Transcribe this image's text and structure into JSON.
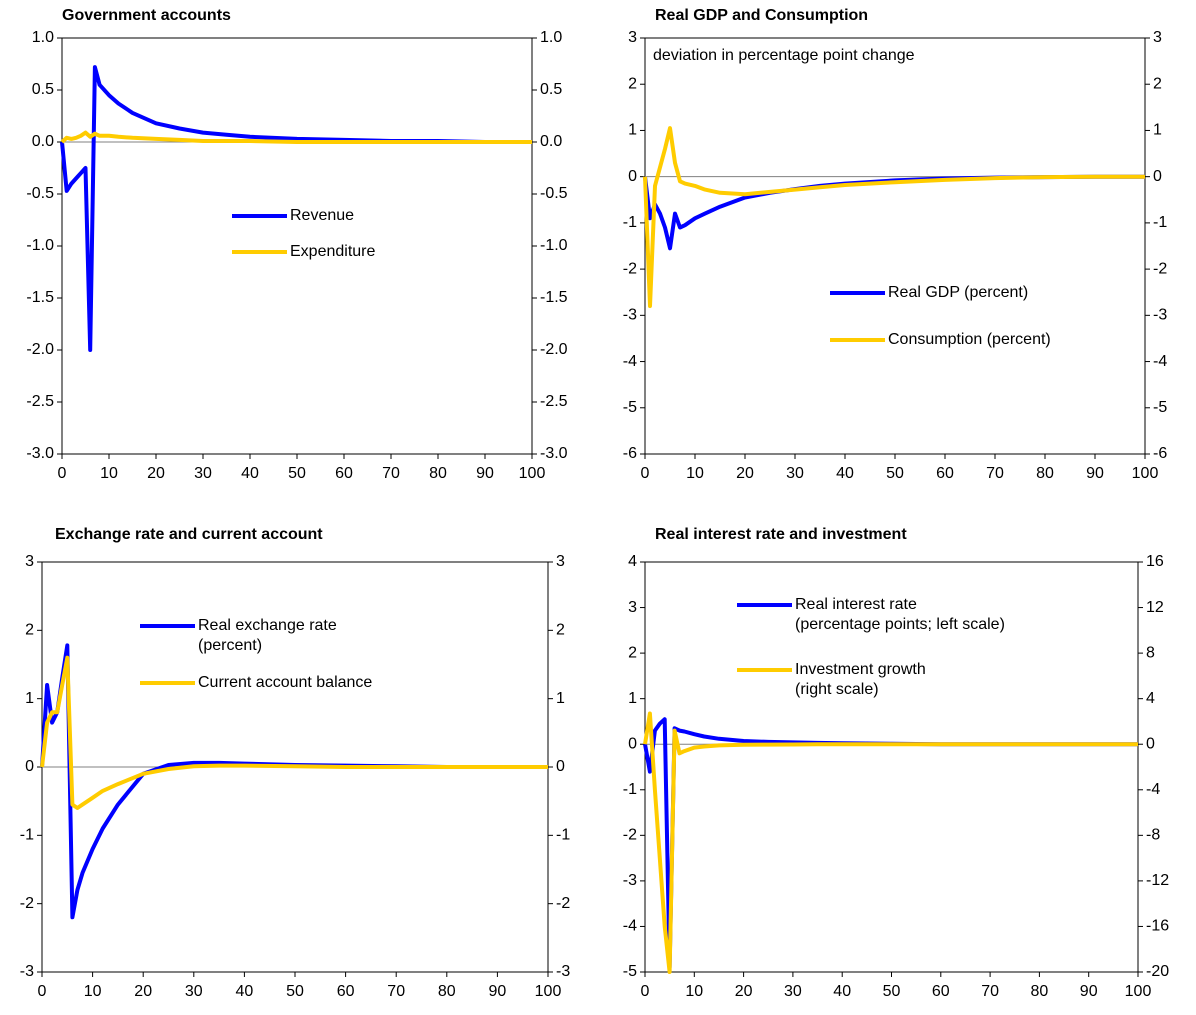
{
  "chart_data": [
    {
      "type": "line",
      "title": "Government accounts",
      "x": [
        0,
        1,
        2,
        3,
        4,
        5,
        6,
        7,
        8,
        10,
        12,
        15,
        20,
        25,
        30,
        35,
        40,
        50,
        60,
        70,
        80,
        90,
        100
      ],
      "series": [
        {
          "name": "Revenue",
          "color": "#0000ff",
          "values": [
            0,
            -0.47,
            -0.4,
            -0.35,
            -0.3,
            -0.25,
            -2.0,
            0.72,
            0.55,
            0.45,
            0.37,
            0.28,
            0.18,
            0.13,
            0.09,
            0.07,
            0.05,
            0.03,
            0.02,
            0.01,
            0.01,
            0,
            0
          ]
        },
        {
          "name": "Expenditure",
          "color": "#ffcc00",
          "values": [
            0,
            0.04,
            0.03,
            0.04,
            0.06,
            0.09,
            0.05,
            0.08,
            0.06,
            0.06,
            0.05,
            0.04,
            0.03,
            0.02,
            0.01,
            0.01,
            0.01,
            0,
            0,
            0,
            0,
            0,
            0
          ]
        }
      ],
      "xlim": [
        0,
        100
      ],
      "xticks": [
        0,
        10,
        20,
        30,
        40,
        50,
        60,
        70,
        80,
        90,
        100
      ],
      "ylim": [
        -3.0,
        1.0
      ],
      "yticks": [
        {
          "value": -3,
          "label": "-3.0"
        },
        {
          "value": -2.5,
          "label": "-2.5"
        },
        {
          "value": -2,
          "label": "-2.0"
        },
        {
          "value": -1.5,
          "label": "-1.5"
        },
        {
          "value": -1,
          "label": "-1.0"
        },
        {
          "value": -0.5,
          "label": "-0.5"
        },
        {
          "value": 0,
          "label": "0.0"
        },
        {
          "value": 0.5,
          "label": "0.5"
        },
        {
          "value": 1,
          "label": "1.0"
        }
      ],
      "y2lim": [
        -3.0,
        1.0
      ],
      "y2ticks": [
        {
          "value": -3,
          "label": "-3.0"
        },
        {
          "value": -2.5,
          "label": "-2.5"
        },
        {
          "value": -2,
          "label": "-2.0"
        },
        {
          "value": -1.5,
          "label": "-1.5"
        },
        {
          "value": -1,
          "label": "-1.0"
        },
        {
          "value": -0.5,
          "label": "-0.5"
        },
        {
          "value": 0,
          "label": "0.0"
        },
        {
          "value": 0.5,
          "label": "0.5"
        },
        {
          "value": 1,
          "label": "1.0"
        }
      ]
    },
    {
      "type": "line",
      "title": "Real GDP and Consumption",
      "annotation": "deviation in percentage point change",
      "x": [
        0,
        1,
        2,
        3,
        4,
        5,
        6,
        7,
        8,
        10,
        12,
        15,
        20,
        25,
        30,
        35,
        40,
        50,
        60,
        70,
        80,
        90,
        100
      ],
      "series": [
        {
          "name": "Real GDP (percent)",
          "color": "#0000ff",
          "values": [
            0,
            -0.9,
            -0.6,
            -0.8,
            -1.1,
            -1.55,
            -0.8,
            -1.1,
            -1.05,
            -0.9,
            -0.8,
            -0.65,
            -0.45,
            -0.35,
            -0.27,
            -0.2,
            -0.15,
            -0.08,
            -0.04,
            -0.02,
            -0.01,
            0,
            0
          ]
        },
        {
          "name": "Consumption (percent)",
          "color": "#ffcc00",
          "values": [
            0,
            -2.8,
            -0.2,
            0.2,
            0.6,
            1.05,
            0.3,
            -0.1,
            -0.15,
            -0.2,
            -0.28,
            -0.35,
            -0.38,
            -0.33,
            -0.28,
            -0.23,
            -0.18,
            -0.12,
            -0.07,
            -0.03,
            -0.01,
            0,
            0
          ]
        }
      ],
      "xlim": [
        0,
        100
      ],
      "xticks": [
        0,
        10,
        20,
        30,
        40,
        50,
        60,
        70,
        80,
        90,
        100
      ],
      "ylim": [
        -6,
        3
      ],
      "yticks": [
        -6,
        -5,
        -4,
        -3,
        -2,
        -1,
        0,
        1,
        2,
        3
      ],
      "y2lim": [
        -6,
        3
      ],
      "y2ticks": [
        -6,
        -5,
        -4,
        -3,
        -2,
        -1,
        0,
        1,
        2,
        3
      ]
    },
    {
      "type": "line",
      "title": "Exchange rate and current account",
      "x": [
        0,
        1,
        2,
        3,
        4,
        5,
        6,
        7,
        8,
        10,
        12,
        15,
        20,
        25,
        30,
        35,
        40,
        50,
        60,
        70,
        80,
        90,
        100
      ],
      "series": [
        {
          "name": "Real exchange rate\n(percent)",
          "color": "#0000ff",
          "values": [
            0,
            1.2,
            0.65,
            0.8,
            1.3,
            1.78,
            -2.2,
            -1.8,
            -1.55,
            -1.2,
            -0.9,
            -0.55,
            -0.1,
            0.03,
            0.06,
            0.06,
            0.05,
            0.03,
            0.02,
            0.01,
            0,
            0,
            0
          ]
        },
        {
          "name": "Current account balance",
          "color": "#ffcc00",
          "values": [
            0,
            0.65,
            0.8,
            0.8,
            1.2,
            1.6,
            -0.55,
            -0.6,
            -0.55,
            -0.45,
            -0.35,
            -0.25,
            -0.1,
            -0.03,
            0.01,
            0.02,
            0.02,
            0.01,
            0,
            0,
            0,
            0,
            0
          ]
        }
      ],
      "xlim": [
        0,
        100
      ],
      "xticks": [
        0,
        10,
        20,
        30,
        40,
        50,
        60,
        70,
        80,
        90,
        100
      ],
      "ylim": [
        -3,
        3
      ],
      "yticks": [
        -3,
        -2,
        -1,
        0,
        1,
        2,
        3
      ],
      "y2lim": [
        -3,
        3
      ],
      "y2ticks": [
        -3,
        -2,
        -1,
        0,
        1,
        2,
        3
      ]
    },
    {
      "type": "line",
      "title": "Real interest rate and investment",
      "x": [
        0,
        1,
        2,
        3,
        4,
        5,
        6,
        7,
        8,
        10,
        12,
        15,
        20,
        25,
        30,
        35,
        40,
        50,
        60,
        70,
        80,
        90,
        100
      ],
      "series": [
        {
          "name": "Real interest rate\n(percentage points; left scale)",
          "color": "#0000ff",
          "values": [
            0,
            -0.6,
            0.3,
            0.45,
            0.55,
            -4.9,
            0.35,
            0.3,
            0.28,
            0.22,
            0.17,
            0.12,
            0.07,
            0.05,
            0.04,
            0.03,
            0.02,
            0.01,
            0,
            0,
            0,
            0,
            0
          ]
        },
        {
          "name": "Investment growth\n(right scale)",
          "color": "#ffcc00",
          "axis": "y2",
          "values": [
            0,
            2.7,
            -4,
            -10,
            -16,
            -20,
            1.2,
            -0.8,
            -0.6,
            -0.3,
            -0.2,
            -0.1,
            -0.05,
            -0.03,
            -0.02,
            -0.01,
            -0.01,
            0,
            0,
            0,
            0,
            0,
            0
          ]
        }
      ],
      "xlim": [
        0,
        100
      ],
      "xticks": [
        0,
        10,
        20,
        30,
        40,
        50,
        60,
        70,
        80,
        90,
        100
      ],
      "ylim": [
        -5,
        4
      ],
      "yticks": [
        -5,
        -4,
        -3,
        -2,
        -1,
        0,
        1,
        2,
        3,
        4
      ],
      "y2lim": [
        -20,
        16
      ],
      "y2ticks": [
        -20,
        -16,
        -12,
        -8,
        -4,
        0,
        4,
        8,
        12,
        16
      ]
    }
  ]
}
